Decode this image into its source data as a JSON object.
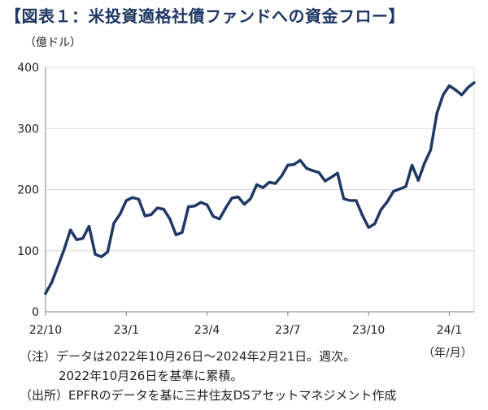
{
  "title": "【図表１：米投資適格社債ファンドへの資金フロー】",
  "y_unit": "（億ドル）",
  "x_unit": "（年/月）",
  "notes": {
    "note1_line1": "（注）データは2022年10月26日～2024年2月21日。週次。",
    "note1_line2": "2022年10月26日を基準に累積。",
    "source": "（出所）EPFRのデータを基に三井住友DSアセットマネジメント作成"
  },
  "colors": {
    "line": "#1f3864",
    "grid": "#d9d9d9",
    "axis": "#7f7f7f",
    "title": "#1f3864"
  },
  "chart_data": {
    "type": "line",
    "title": "【図表１：米投資適格社債ファンドへの資金フロー】",
    "ylabel": "（億ドル）",
    "xlabel": "（年/月）",
    "ylim": [
      0,
      400
    ],
    "yticks": [
      0,
      100,
      200,
      300,
      400
    ],
    "xticks": [
      {
        "label": "22/10",
        "i": 0
      },
      {
        "label": "23/1",
        "i": 13
      },
      {
        "label": "23/4",
        "i": 26
      },
      {
        "label": "23/7",
        "i": 39
      },
      {
        "label": "23/10",
        "i": 52
      },
      {
        "label": "24/1",
        "i": 65
      }
    ],
    "grid": true,
    "series": [
      {
        "values": [
          30,
          48,
          75,
          102,
          134,
          118,
          120,
          140,
          94,
          90,
          98,
          145,
          160,
          182,
          187,
          184,
          157,
          159,
          170,
          168,
          152,
          126,
          130,
          172,
          173,
          179,
          175,
          156,
          152,
          170,
          186,
          188,
          176,
          185,
          208,
          203,
          212,
          210,
          222,
          240,
          241,
          248,
          235,
          231,
          228,
          214,
          220,
          227,
          185,
          182,
          182,
          158,
          138,
          144,
          167,
          180,
          197,
          201,
          205,
          240,
          215,
          243,
          265,
          325,
          355,
          370,
          363,
          355,
          367,
          375
        ]
      }
    ]
  }
}
